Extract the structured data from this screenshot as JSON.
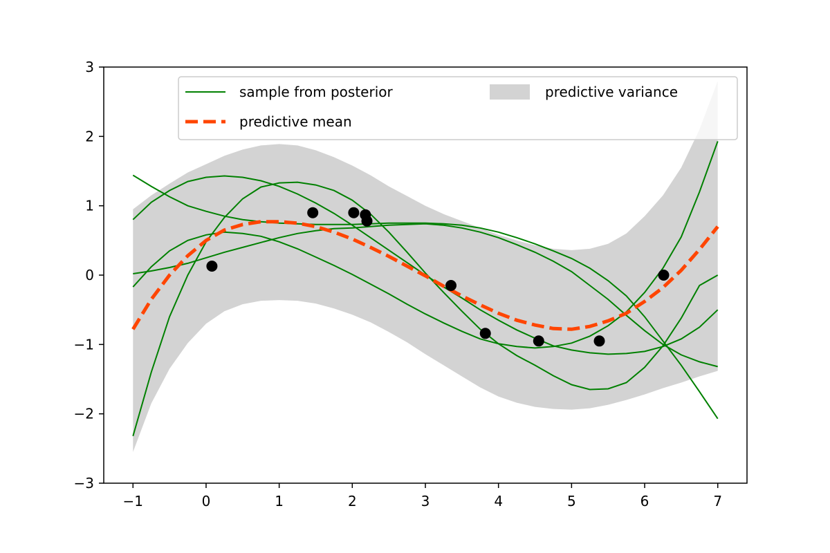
{
  "chart_data": {
    "type": "line",
    "xlim": [
      -1.4,
      7.4
    ],
    "ylim": [
      -3,
      3
    ],
    "xticks": [
      -1,
      0,
      1,
      2,
      3,
      4,
      5,
      6,
      7
    ],
    "yticks": [
      -3,
      -2,
      -1,
      0,
      1,
      2,
      3
    ],
    "xtick_labels": [
      "−1",
      "0",
      "1",
      "2",
      "3",
      "4",
      "5",
      "6",
      "7"
    ],
    "ytick_labels": [
      "−3",
      "−2",
      "−1",
      "0",
      "1",
      "2",
      "3"
    ],
    "grid": false,
    "legend_position": "top-right",
    "legend": {
      "samples": "sample from posterior",
      "mean": "predictive mean",
      "variance": "predictive variance"
    },
    "colors": {
      "samples": "#008000",
      "mean": "#ff4500",
      "variance": "#d3d3d3",
      "points": "#000000"
    },
    "x": [
      -1.0,
      -0.75,
      -0.5,
      -0.25,
      0.0,
      0.25,
      0.5,
      0.75,
      1.0,
      1.25,
      1.5,
      1.75,
      2.0,
      2.25,
      2.5,
      2.75,
      3.0,
      3.25,
      3.5,
      3.75,
      4.0,
      4.25,
      4.5,
      4.75,
      5.0,
      5.25,
      5.5,
      5.75,
      6.0,
      6.25,
      6.5,
      6.75,
      7.0
    ],
    "variance_upper": [
      0.95,
      1.15,
      1.32,
      1.48,
      1.6,
      1.72,
      1.81,
      1.87,
      1.89,
      1.87,
      1.8,
      1.7,
      1.58,
      1.44,
      1.28,
      1.14,
      1.0,
      0.88,
      0.78,
      0.68,
      0.58,
      0.5,
      0.43,
      0.38,
      0.36,
      0.38,
      0.45,
      0.6,
      0.85,
      1.15,
      1.55,
      2.1,
      2.8
    ],
    "variance_lower": [
      -2.55,
      -1.85,
      -1.35,
      -0.98,
      -0.7,
      -0.52,
      -0.42,
      -0.37,
      -0.36,
      -0.37,
      -0.41,
      -0.48,
      -0.57,
      -0.68,
      -0.82,
      -0.97,
      -1.14,
      -1.3,
      -1.46,
      -1.62,
      -1.75,
      -1.84,
      -1.9,
      -1.93,
      -1.94,
      -1.92,
      -1.87,
      -1.8,
      -1.72,
      -1.63,
      -1.55,
      -1.46,
      -1.38
    ],
    "series": [
      {
        "values": [
          -0.78,
          -0.35,
          0.0,
          0.28,
          0.5,
          0.65,
          0.73,
          0.77,
          0.77,
          0.75,
          0.7,
          0.62,
          0.52,
          0.4,
          0.27,
          0.13,
          -0.01,
          -0.16,
          -0.3,
          -0.43,
          -0.55,
          -0.65,
          -0.72,
          -0.77,
          -0.78,
          -0.74,
          -0.66,
          -0.55,
          -0.38,
          -0.18,
          0.07,
          0.37,
          0.7
        ]
      },
      {
        "values": [
          1.44,
          1.28,
          1.13,
          1.0,
          0.92,
          0.85,
          0.8,
          0.77,
          0.75,
          0.74,
          0.73,
          0.73,
          0.73,
          0.74,
          0.75,
          0.75,
          0.75,
          0.74,
          0.72,
          0.68,
          0.62,
          0.54,
          0.45,
          0.35,
          0.24,
          0.1,
          -0.08,
          -0.3,
          -0.6,
          -0.95,
          -1.3,
          -1.68,
          -2.07
        ]
      },
      {
        "values": [
          0.02,
          0.06,
          0.11,
          0.17,
          0.25,
          0.33,
          0.4,
          0.47,
          0.54,
          0.6,
          0.64,
          0.67,
          0.68,
          0.7,
          0.72,
          0.73,
          0.74,
          0.72,
          0.68,
          0.62,
          0.54,
          0.44,
          0.33,
          0.2,
          0.05,
          -0.15,
          -0.35,
          -0.58,
          -0.8,
          -1.0,
          -1.15,
          -1.25,
          -1.32
        ]
      },
      {
        "values": [
          0.8,
          1.05,
          1.22,
          1.35,
          1.41,
          1.43,
          1.41,
          1.36,
          1.28,
          1.17,
          1.04,
          0.89,
          0.72,
          0.54,
          0.36,
          0.18,
          0.0,
          -0.17,
          -0.33,
          -0.5,
          -0.65,
          -0.79,
          -0.91,
          -1.02,
          -1.08,
          -1.12,
          -1.14,
          -1.13,
          -1.1,
          -1.03,
          -0.92,
          -0.75,
          -0.5
        ]
      },
      {
        "values": [
          -0.17,
          0.12,
          0.35,
          0.5,
          0.58,
          0.62,
          0.6,
          0.56,
          0.48,
          0.38,
          0.26,
          0.14,
          0.01,
          -0.13,
          -0.27,
          -0.42,
          -0.56,
          -0.69,
          -0.81,
          -0.92,
          -0.99,
          -1.03,
          -1.05,
          -1.03,
          -0.98,
          -0.88,
          -0.73,
          -0.53,
          -0.25,
          0.1,
          0.55,
          1.2,
          1.93
        ]
      },
      {
        "values": [
          -2.32,
          -1.4,
          -0.6,
          0.0,
          0.48,
          0.83,
          1.1,
          1.27,
          1.33,
          1.34,
          1.3,
          1.22,
          1.08,
          0.88,
          0.62,
          0.33,
          0.03,
          -0.25,
          -0.52,
          -0.78,
          -0.99,
          -1.16,
          -1.3,
          -1.45,
          -1.58,
          -1.65,
          -1.64,
          -1.55,
          -1.33,
          -1.02,
          -0.62,
          -0.15,
          0.0
        ]
      }
    ],
    "points": {
      "x": [
        0.08,
        1.46,
        2.02,
        2.18,
        2.2,
        3.35,
        3.82,
        4.55,
        5.38,
        6.26
      ],
      "y": [
        0.13,
        0.9,
        0.9,
        0.87,
        0.78,
        -0.15,
        -0.84,
        -0.95,
        -0.95,
        0.0
      ]
    }
  }
}
